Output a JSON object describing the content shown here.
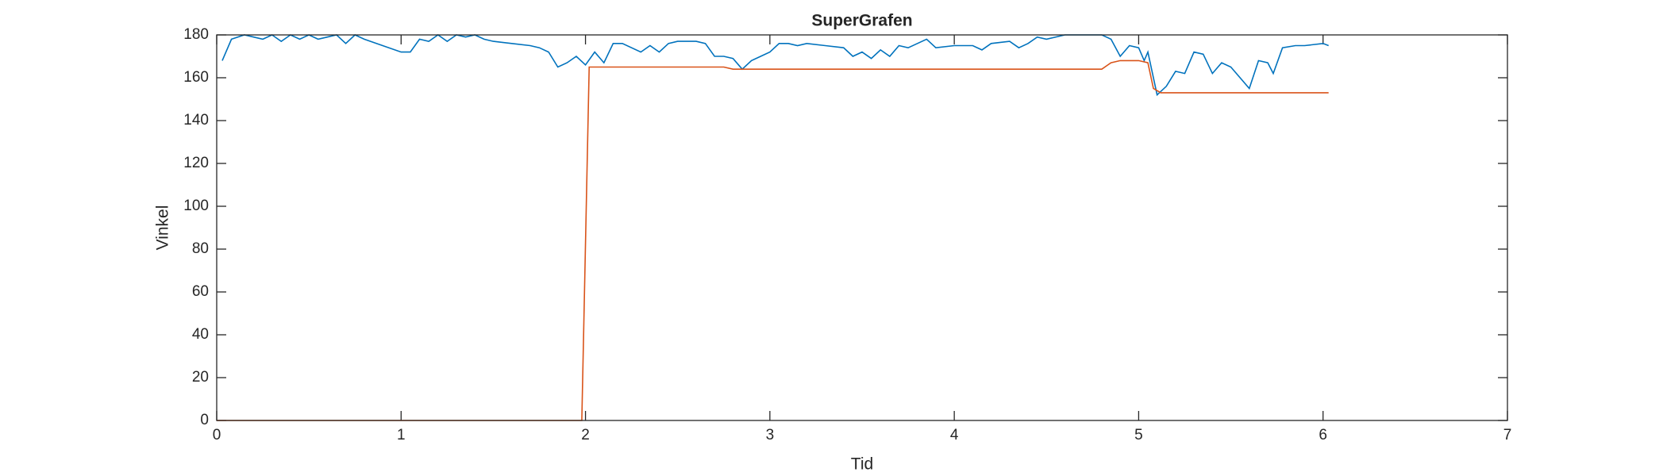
{
  "chart_data": {
    "type": "line",
    "title": "SuperGrafen",
    "x_label": "Tid",
    "y_label": "Vinkel",
    "xlim": [
      0,
      7
    ],
    "xticks": [
      0,
      1,
      2,
      3,
      4,
      5,
      6,
      7
    ],
    "ylim": [
      0,
      180
    ],
    "yticks": [
      0,
      20,
      40,
      60,
      80,
      100,
      120,
      140,
      160,
      180
    ],
    "series": [
      {
        "color": "#0072bd",
        "x": [
          0.03,
          0.08,
          0.15,
          0.2,
          0.25,
          0.3,
          0.35,
          0.4,
          0.45,
          0.5,
          0.55,
          0.6,
          0.65,
          0.7,
          0.75,
          0.8,
          0.9,
          1.0,
          1.05,
          1.1,
          1.15,
          1.2,
          1.25,
          1.3,
          1.35,
          1.4,
          1.45,
          1.5,
          1.6,
          1.7,
          1.75,
          1.8,
          1.85,
          1.9,
          1.95,
          2.0,
          2.05,
          2.1,
          2.15,
          2.2,
          2.3,
          2.35,
          2.4,
          2.45,
          2.5,
          2.6,
          2.65,
          2.7,
          2.75,
          2.8,
          2.85,
          2.9,
          2.95,
          3.0,
          3.05,
          3.1,
          3.15,
          3.2,
          3.3,
          3.4,
          3.45,
          3.5,
          3.55,
          3.6,
          3.65,
          3.7,
          3.75,
          3.8,
          3.85,
          3.9,
          4.0,
          4.1,
          4.15,
          4.2,
          4.3,
          4.35,
          4.4,
          4.45,
          4.5,
          4.6,
          4.7,
          4.8,
          4.85,
          4.9,
          4.95,
          5.0,
          5.03,
          5.05,
          5.1,
          5.15,
          5.2,
          5.25,
          5.3,
          5.35,
          5.4,
          5.45,
          5.5,
          5.55,
          5.6,
          5.65,
          5.7,
          5.73,
          5.78,
          5.85,
          5.9,
          6.0,
          6.03
        ],
        "values": [
          168,
          178,
          180,
          179,
          178,
          180,
          177,
          180,
          178,
          180,
          178,
          179,
          180,
          176,
          180,
          178,
          175,
          172,
          172,
          178,
          177,
          180,
          177,
          180,
          179,
          180,
          178,
          177,
          176,
          175,
          174,
          172,
          165,
          167,
          170,
          166,
          172,
          167,
          176,
          176,
          172,
          175,
          172,
          176,
          177,
          177,
          176,
          170,
          170,
          169,
          164,
          168,
          170,
          172,
          176,
          176,
          175,
          176,
          175,
          174,
          170,
          172,
          169,
          173,
          170,
          175,
          174,
          176,
          178,
          174,
          175,
          175,
          173,
          176,
          177,
          174,
          176,
          179,
          178,
          180,
          180,
          180,
          178,
          170,
          175,
          174,
          168,
          172,
          152,
          156,
          163,
          162,
          172,
          171,
          162,
          167,
          165,
          160,
          155,
          168,
          167,
          162,
          174,
          175,
          175,
          176,
          175
        ]
      },
      {
        "color": "#d95319",
        "x": [
          0,
          1.98,
          2.02,
          2.75,
          2.8,
          4.8,
          4.85,
          4.9,
          5.0,
          5.05,
          5.08,
          5.12,
          6.03
        ],
        "values": [
          0,
          0,
          165,
          165,
          164,
          164,
          167,
          168,
          168,
          167,
          155,
          153,
          153
        ]
      }
    ]
  }
}
